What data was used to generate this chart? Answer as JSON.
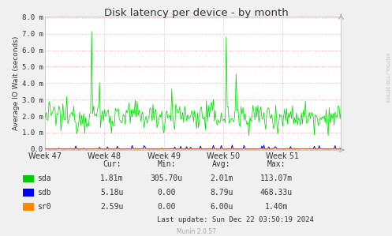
{
  "title": "Disk latency per device - by month",
  "ylabel": "Average IO Wait (seconds)",
  "background_color": "#f0f0f0",
  "plot_bg_color": "#ffffff",
  "grid_h_color": "#ffaaaa",
  "grid_v_color": "#aaaacc",
  "xticklabels": [
    "Week 47",
    "Week 48",
    "Week 49",
    "Week 50",
    "Week 51"
  ],
  "ytick_labels": [
    "0.0",
    "1.0 m",
    "2.0 m",
    "3.0 m",
    "4.0 m",
    "5.0 m",
    "6.0 m",
    "7.0 m",
    "8.0 m"
  ],
  "ytick_vals": [
    0.0,
    0.001,
    0.002,
    0.003,
    0.004,
    0.005,
    0.006,
    0.007,
    0.008
  ],
  "ymax": 0.008,
  "sda_color": "#00dd00",
  "sdb_color": "#0000ff",
  "sr0_color": "#ff8800",
  "legend": [
    {
      "label": "sda",
      "color": "#00cc00"
    },
    {
      "label": "sdb",
      "color": "#0000ff"
    },
    {
      "label": "sr0",
      "color": "#ff8800"
    }
  ],
  "table_headers": [
    "Cur:",
    "Min:",
    "Avg:",
    "Max:"
  ],
  "table_data": [
    [
      "1.81m",
      "305.70u",
      "2.01m",
      "113.07m"
    ],
    [
      "5.18u",
      "0.00",
      "8.79u",
      "468.33u"
    ],
    [
      "2.59u",
      "0.00",
      "6.00u",
      "1.40m"
    ]
  ],
  "last_update": "Last update: Sun Dec 22 03:50:19 2024",
  "munin_version": "Munin 2.0.57",
  "rrdtool_label": "RRDTOOL / TOBI OETIKER",
  "num_points": 300,
  "week_x_positions": [
    0,
    60,
    120,
    180,
    240
  ],
  "sda_base": 0.002,
  "sda_noise": 0.00045
}
